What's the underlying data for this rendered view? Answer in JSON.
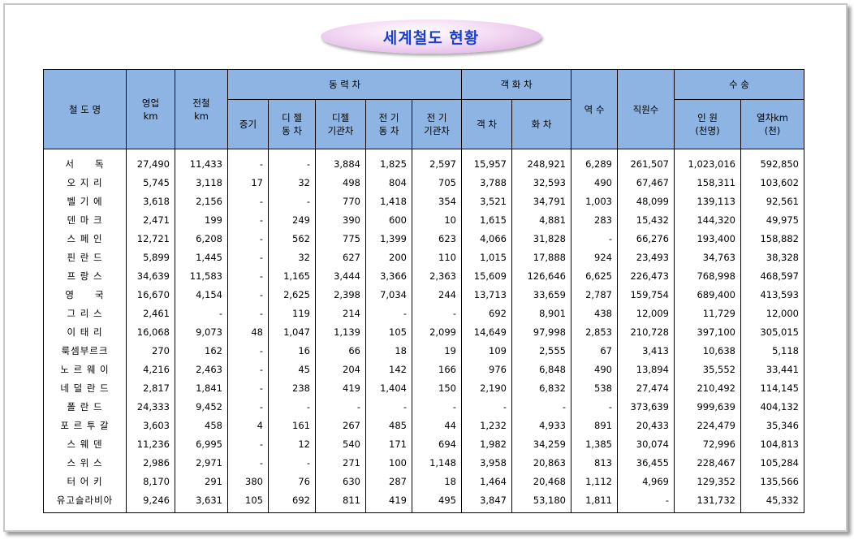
{
  "title": "세계철도 현황",
  "table": {
    "headers": {
      "name": "철 도 명",
      "op_km": "영업\nkm",
      "elec_km": "전철\nkm",
      "power": "동 력 차",
      "steam": "증기",
      "dmu": "디 젤\n동 차",
      "diesel_loco": "디젤\n기관차",
      "emu": "전 기\n동 차",
      "elec_loco": "전 기\n기관차",
      "cars": "객 화 차",
      "passenger": "객 차",
      "freight": "화 차",
      "stations": "역 수",
      "staff": "직원수",
      "transport": "수 송",
      "persons": "인 원\n(천명)",
      "train_km": "열차km\n(천)"
    },
    "rows": [
      [
        "서　　독",
        "27,490",
        "11,433",
        "-",
        "-",
        "3,884",
        "1,825",
        "2,597",
        "15,957",
        "248,921",
        "6,289",
        "261,507",
        "1,023,016",
        "592,850"
      ],
      [
        "오 지 리",
        "5,745",
        "3,118",
        "17",
        "32",
        "498",
        "804",
        "705",
        "3,788",
        "32,593",
        "490",
        "67,467",
        "158,311",
        "103,602"
      ],
      [
        "벨 기 에",
        "3,618",
        "2,156",
        "-",
        "-",
        "770",
        "1,418",
        "354",
        "3,521",
        "34,791",
        "1,003",
        "48,099",
        "139,113",
        "92,561"
      ],
      [
        "덴 마 크",
        "2,471",
        "199",
        "-",
        "249",
        "390",
        "600",
        "10",
        "1,615",
        "4,881",
        "283",
        "15,432",
        "144,320",
        "49,975"
      ],
      [
        "스 페 인",
        "12,721",
        "6,208",
        "-",
        "562",
        "775",
        "1,399",
        "623",
        "4,066",
        "31,828",
        "-",
        "66,276",
        "193,400",
        "158,882"
      ],
      [
        "핀 란 드",
        "5,899",
        "1,445",
        "-",
        "32",
        "627",
        "200",
        "110",
        "1,015",
        "17,888",
        "924",
        "23,493",
        "34,763",
        "38,328"
      ],
      [
        "프 랑 스",
        "34,639",
        "11,583",
        "-",
        "1,165",
        "3,444",
        "3,366",
        "2,363",
        "15,609",
        "126,646",
        "6,625",
        "226,473",
        "768,998",
        "468,597"
      ],
      [
        "영　　국",
        "16,670",
        "4,154",
        "-",
        "2,625",
        "2,398",
        "7,034",
        "244",
        "13,713",
        "33,659",
        "2,787",
        "159,754",
        "689,400",
        "413,593"
      ],
      [
        "그 리 스",
        "2,461",
        "-",
        "-",
        "119",
        "214",
        "-",
        "-",
        "692",
        "8,901",
        "438",
        "12,009",
        "11,729",
        "12,000"
      ],
      [
        "이 태 리",
        "16,068",
        "9,073",
        "48",
        "1,047",
        "1,139",
        "105",
        "2,099",
        "14,649",
        "97,998",
        "2,853",
        "210,728",
        "397,100",
        "305,015"
      ],
      [
        "룩셈부르크",
        "270",
        "162",
        "-",
        "16",
        "66",
        "18",
        "19",
        "109",
        "2,555",
        "67",
        "3,413",
        "10,638",
        "5,118"
      ],
      [
        "노 르 웨 이",
        "4,216",
        "2,463",
        "-",
        "45",
        "204",
        "142",
        "166",
        "976",
        "6,848",
        "490",
        "13,894",
        "35,552",
        "33,441"
      ],
      [
        "네 덜 란 드",
        "2,817",
        "1,841",
        "-",
        "238",
        "419",
        "1,404",
        "150",
        "2,190",
        "6,832",
        "538",
        "27,474",
        "210,492",
        "114,145"
      ],
      [
        "폴 란 드",
        "24,333",
        "9,452",
        "-",
        "-",
        "-",
        "-",
        "-",
        "-",
        "-",
        "-",
        "373,639",
        "999,639",
        "404,132"
      ],
      [
        "포 르 투 갈",
        "3,603",
        "458",
        "4",
        "161",
        "267",
        "485",
        "44",
        "1,232",
        "4,933",
        "891",
        "20,433",
        "224,479",
        "35,346"
      ],
      [
        "스 웨 덴",
        "11,236",
        "6,995",
        "-",
        "12",
        "540",
        "171",
        "694",
        "1,982",
        "34,259",
        "1,385",
        "30,074",
        "72,996",
        "104,813"
      ],
      [
        "스 위 스",
        "2,986",
        "2,971",
        "-",
        "-",
        "271",
        "100",
        "1,148",
        "3,958",
        "20,863",
        "813",
        "36,455",
        "228,467",
        "105,284"
      ],
      [
        "터 어 키",
        "8,170",
        "291",
        "380",
        "76",
        "630",
        "287",
        "18",
        "1,464",
        "20,468",
        "1,112",
        "4,969",
        "129,352",
        "135,566"
      ],
      [
        "유고슬라비아",
        "9,246",
        "3,631",
        "105",
        "692",
        "811",
        "419",
        "495",
        "3,847",
        "53,180",
        "1,811",
        "-",
        "131,732",
        "45,332"
      ]
    ]
  }
}
